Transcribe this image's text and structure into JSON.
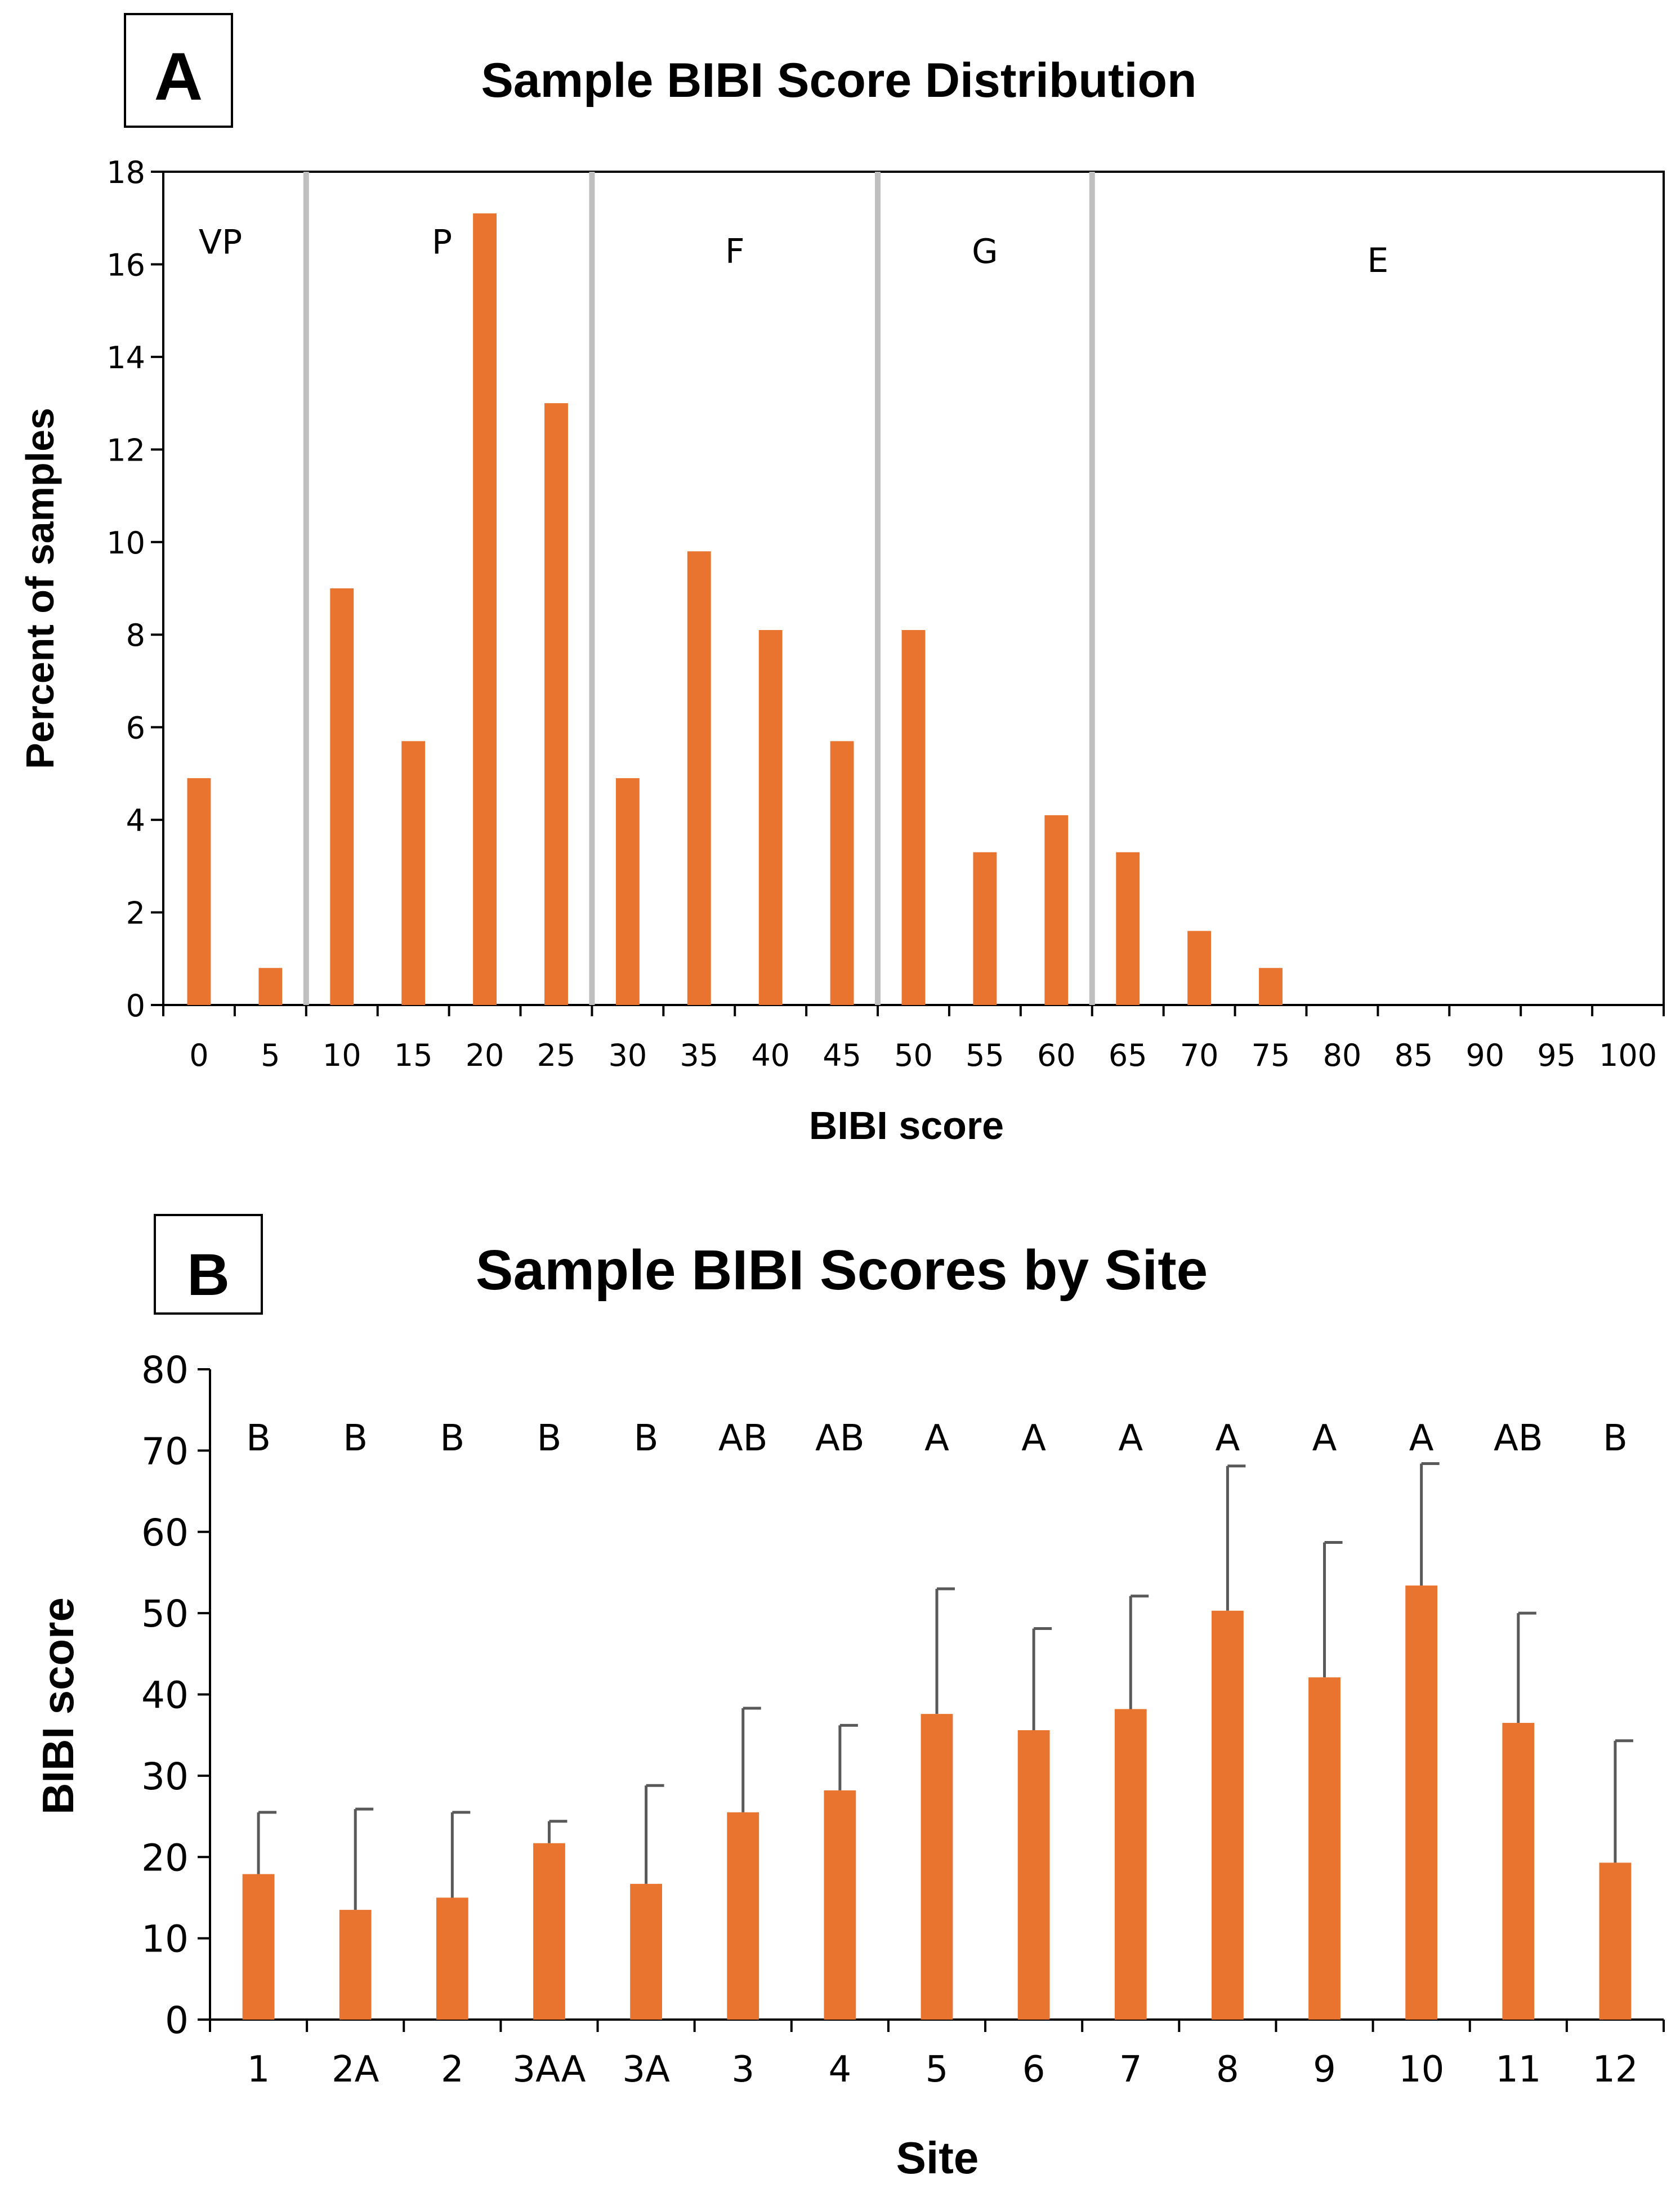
{
  "chart_data": [
    {
      "panel": "A",
      "type": "bar",
      "title": "Sample BIBI Score Distribution",
      "xlabel": "BIBI score",
      "ylabel": "Percent of samples",
      "ylim": [
        0,
        18
      ],
      "yticks": [
        0,
        2,
        4,
        6,
        8,
        10,
        12,
        14,
        16,
        18
      ],
      "categories": [
        "0",
        "5",
        "10",
        "15",
        "20",
        "25",
        "30",
        "35",
        "40",
        "45",
        "50",
        "55",
        "60",
        "65",
        "70",
        "75",
        "80",
        "85",
        "90",
        "95",
        "100"
      ],
      "values": [
        4.9,
        0.8,
        9.0,
        5.7,
        17.1,
        13.0,
        4.9,
        9.8,
        8.1,
        5.7,
        8.1,
        3.3,
        4.1,
        3.3,
        1.6,
        0.8,
        0,
        0,
        0,
        0,
        0
      ],
      "bar_color": "#E9742F",
      "grid": false,
      "class_boundaries": [
        7.5,
        27.5,
        47.5,
        62.5
      ],
      "boundary_color": "#BFBFBF",
      "class_labels": [
        {
          "label": "VP",
          "x": 1.5,
          "y": 16.5
        },
        {
          "label": "P",
          "x": 17.0,
          "y": 16.5
        },
        {
          "label": "F",
          "x": 37.5,
          "y": 16.3
        },
        {
          "label": "G",
          "x": 55.0,
          "y": 16.3
        },
        {
          "label": "E",
          "x": 82.5,
          "y": 16.1
        }
      ]
    },
    {
      "panel": "B",
      "type": "bar",
      "title": "Sample BIBI Scores by Site",
      "xlabel": "Site",
      "ylabel": "BIBI score",
      "ylim": [
        0,
        80
      ],
      "yticks": [
        0,
        10,
        20,
        30,
        40,
        50,
        60,
        70,
        80
      ],
      "categories": [
        "1",
        "2A",
        "2",
        "3AA",
        "3A",
        "3",
        "4",
        "5",
        "6",
        "7",
        "8",
        "9",
        "10",
        "11",
        "12"
      ],
      "values": [
        17.9,
        13.5,
        15.0,
        21.7,
        16.7,
        25.5,
        28.2,
        37.6,
        35.6,
        38.2,
        50.3,
        42.1,
        53.4,
        36.5,
        19.3
      ],
      "error_upper": [
        25.5,
        25.9,
        25.5,
        24.4,
        28.8,
        38.3,
        36.2,
        53.0,
        48.1,
        52.1,
        68.1,
        58.7,
        68.4,
        50.0,
        34.3
      ],
      "significance_letters": [
        "B",
        "B",
        "B",
        "B",
        "B",
        "AB",
        "AB",
        "A",
        "A",
        "A",
        "A",
        "A",
        "A",
        "AB",
        "B"
      ],
      "bar_color": "#E9742F",
      "error_color": "#595959",
      "grid": false
    }
  ]
}
